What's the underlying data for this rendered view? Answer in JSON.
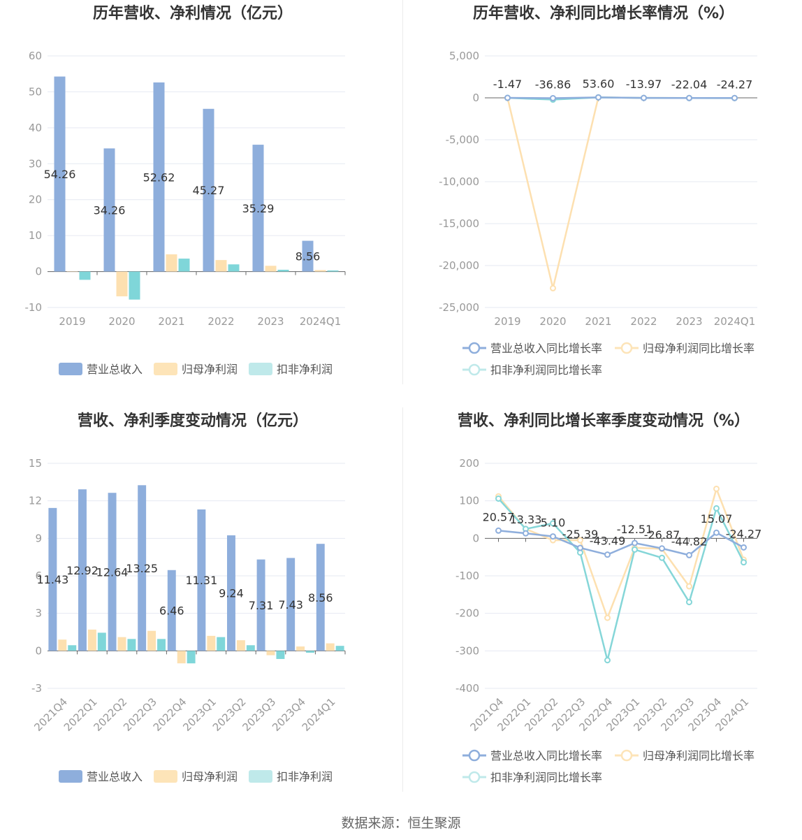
{
  "colors": {
    "revenue": "#8eaedc",
    "net_profit": "#fde0b0",
    "deducted_profit": "#7fd6d9",
    "revenue_line": "#8eaedc",
    "net_line": "#fde0b0",
    "deducted_line": "#85d6d8",
    "legend_net_line": "#fde4b8",
    "legend_deducted_line": "#bfe9ea",
    "grid": "#e6e9f2",
    "axis_text": "#999999",
    "title": "#333333"
  },
  "panels": [
    {
      "title": "历年营收、净利情况（亿元）",
      "legend": [
        "营业总收入",
        "归母净利润",
        "扣非净利润"
      ]
    },
    {
      "title": "历年营收、净利同比增长率情况（%）",
      "legend": [
        "营业总收入同比增长率",
        "归母净利润同比增长率",
        "扣非净利润同比增长率"
      ]
    },
    {
      "title": "营收、净利季度变动情况（亿元）",
      "legend": [
        "营业总收入",
        "归母净利润",
        "扣非净利润"
      ]
    },
    {
      "title": "营收、净利同比增长率季度变动情况（%）",
      "legend": [
        "营业总收入同比增长率",
        "归母净利润同比增长率",
        "扣非净利润同比增长率"
      ]
    }
  ],
  "chart_data": [
    {
      "type": "bar",
      "title": "历年营收、净利情况（亿元）",
      "categories": [
        "2019",
        "2020",
        "2021",
        "2022",
        "2023",
        "2024Q1"
      ],
      "ylim": [
        -10,
        60
      ],
      "yticks": [
        -10,
        0,
        10,
        20,
        30,
        40,
        50,
        60
      ],
      "grid": true,
      "legend_position": "bottom",
      "series": [
        {
          "name": "营业总收入",
          "values": [
            54.26,
            34.26,
            52.62,
            45.27,
            35.29,
            8.56
          ],
          "labels": [
            "54.26",
            "34.26",
            "52.62",
            "45.27",
            "35.29",
            "8.56"
          ]
        },
        {
          "name": "归母净利润",
          "values": [
            0.0,
            -6.9,
            4.8,
            3.2,
            1.6,
            0.4
          ]
        },
        {
          "name": "扣非净利润",
          "values": [
            -2.3,
            -7.8,
            3.6,
            2.0,
            0.5,
            0.3
          ]
        }
      ]
    },
    {
      "type": "line",
      "title": "历年营收、净利同比增长率情况（%）",
      "categories": [
        "2019",
        "2020",
        "2021",
        "2022",
        "2023",
        "2024Q1"
      ],
      "ylim": [
        -25000,
        5000
      ],
      "yticks": [
        -25000,
        -20000,
        -15000,
        -10000,
        -5000,
        0,
        5000
      ],
      "ytick_labels": [
        "-25,000",
        "-20,000",
        "-15,000",
        "-10,000",
        "-5,000",
        "0",
        "5,000"
      ],
      "grid": true,
      "legend_position": "bottom",
      "series": [
        {
          "name": "营业总收入同比增长率",
          "values": [
            -1.47,
            -36.86,
            53.6,
            -13.97,
            -22.04,
            -24.27
          ],
          "labels": [
            "-1.47",
            "-36.86",
            "53.60",
            "-13.97",
            "-22.04",
            "-24.27"
          ]
        },
        {
          "name": "归母净利润同比增长率",
          "values": [
            -10,
            -22700,
            60,
            -10,
            -20,
            -30
          ]
        },
        {
          "name": "扣非净利润同比增长率",
          "values": [
            -5,
            -210,
            55,
            -15,
            -25,
            -28
          ]
        }
      ]
    },
    {
      "type": "bar",
      "title": "营收、净利季度变动情况（亿元）",
      "categories": [
        "2021Q4",
        "2022Q1",
        "2022Q2",
        "2022Q3",
        "2022Q4",
        "2023Q1",
        "2023Q2",
        "2023Q3",
        "2023Q4",
        "2024Q1"
      ],
      "ylim": [
        -3,
        15
      ],
      "yticks": [
        -3,
        0,
        3,
        6,
        9,
        12,
        15
      ],
      "grid": true,
      "legend_position": "bottom",
      "series": [
        {
          "name": "营业总收入",
          "values": [
            11.43,
            12.92,
            12.64,
            13.25,
            6.46,
            11.31,
            9.24,
            7.31,
            7.43,
            8.56
          ],
          "labels": [
            "11.43",
            "12.92",
            "12.64",
            "13.25",
            "6.46",
            "11.31",
            "9.24",
            "7.31",
            "7.43",
            "8.56"
          ]
        },
        {
          "name": "归母净利润",
          "values": [
            0.9,
            1.7,
            1.1,
            1.6,
            -1.0,
            1.2,
            0.85,
            -0.35,
            0.35,
            0.6
          ]
        },
        {
          "name": "扣非净利润",
          "values": [
            0.45,
            1.45,
            0.95,
            0.95,
            -1.0,
            1.1,
            0.45,
            -0.65,
            -0.15,
            0.4
          ]
        }
      ]
    },
    {
      "type": "line",
      "title": "营收、净利同比增长率季度变动情况（%）",
      "categories": [
        "2021Q4",
        "2022Q1",
        "2022Q2",
        "2022Q3",
        "2022Q4",
        "2023Q1",
        "2023Q2",
        "2023Q3",
        "2023Q4",
        "2024Q1"
      ],
      "ylim": [
        -400,
        200
      ],
      "yticks": [
        -400,
        -300,
        -200,
        -100,
        0,
        100,
        200
      ],
      "grid": true,
      "legend_position": "bottom",
      "series": [
        {
          "name": "营业总收入同比增长率",
          "values": [
            20.57,
            13.33,
            5.1,
            -25.39,
            -43.49,
            -12.51,
            -26.87,
            -44.82,
            15.07,
            -24.27
          ],
          "labels": [
            "20.57",
            "13.33",
            "5.10",
            "-25.39",
            "-43.49",
            "-12.51",
            "-26.87",
            "-44.82",
            "15.07",
            "-24.27"
          ]
        },
        {
          "name": "归母净利润同比增长率",
          "values": [
            112,
            25,
            -5,
            -5,
            -212,
            -25,
            -28,
            -128,
            132,
            -57
          ]
        },
        {
          "name": "扣非净利润同比增长率",
          "values": [
            106,
            25,
            40,
            -38,
            -325,
            -30,
            -52,
            -170,
            80,
            -64
          ]
        }
      ]
    }
  ],
  "footer": {
    "source": "数据来源：恒生聚源"
  }
}
